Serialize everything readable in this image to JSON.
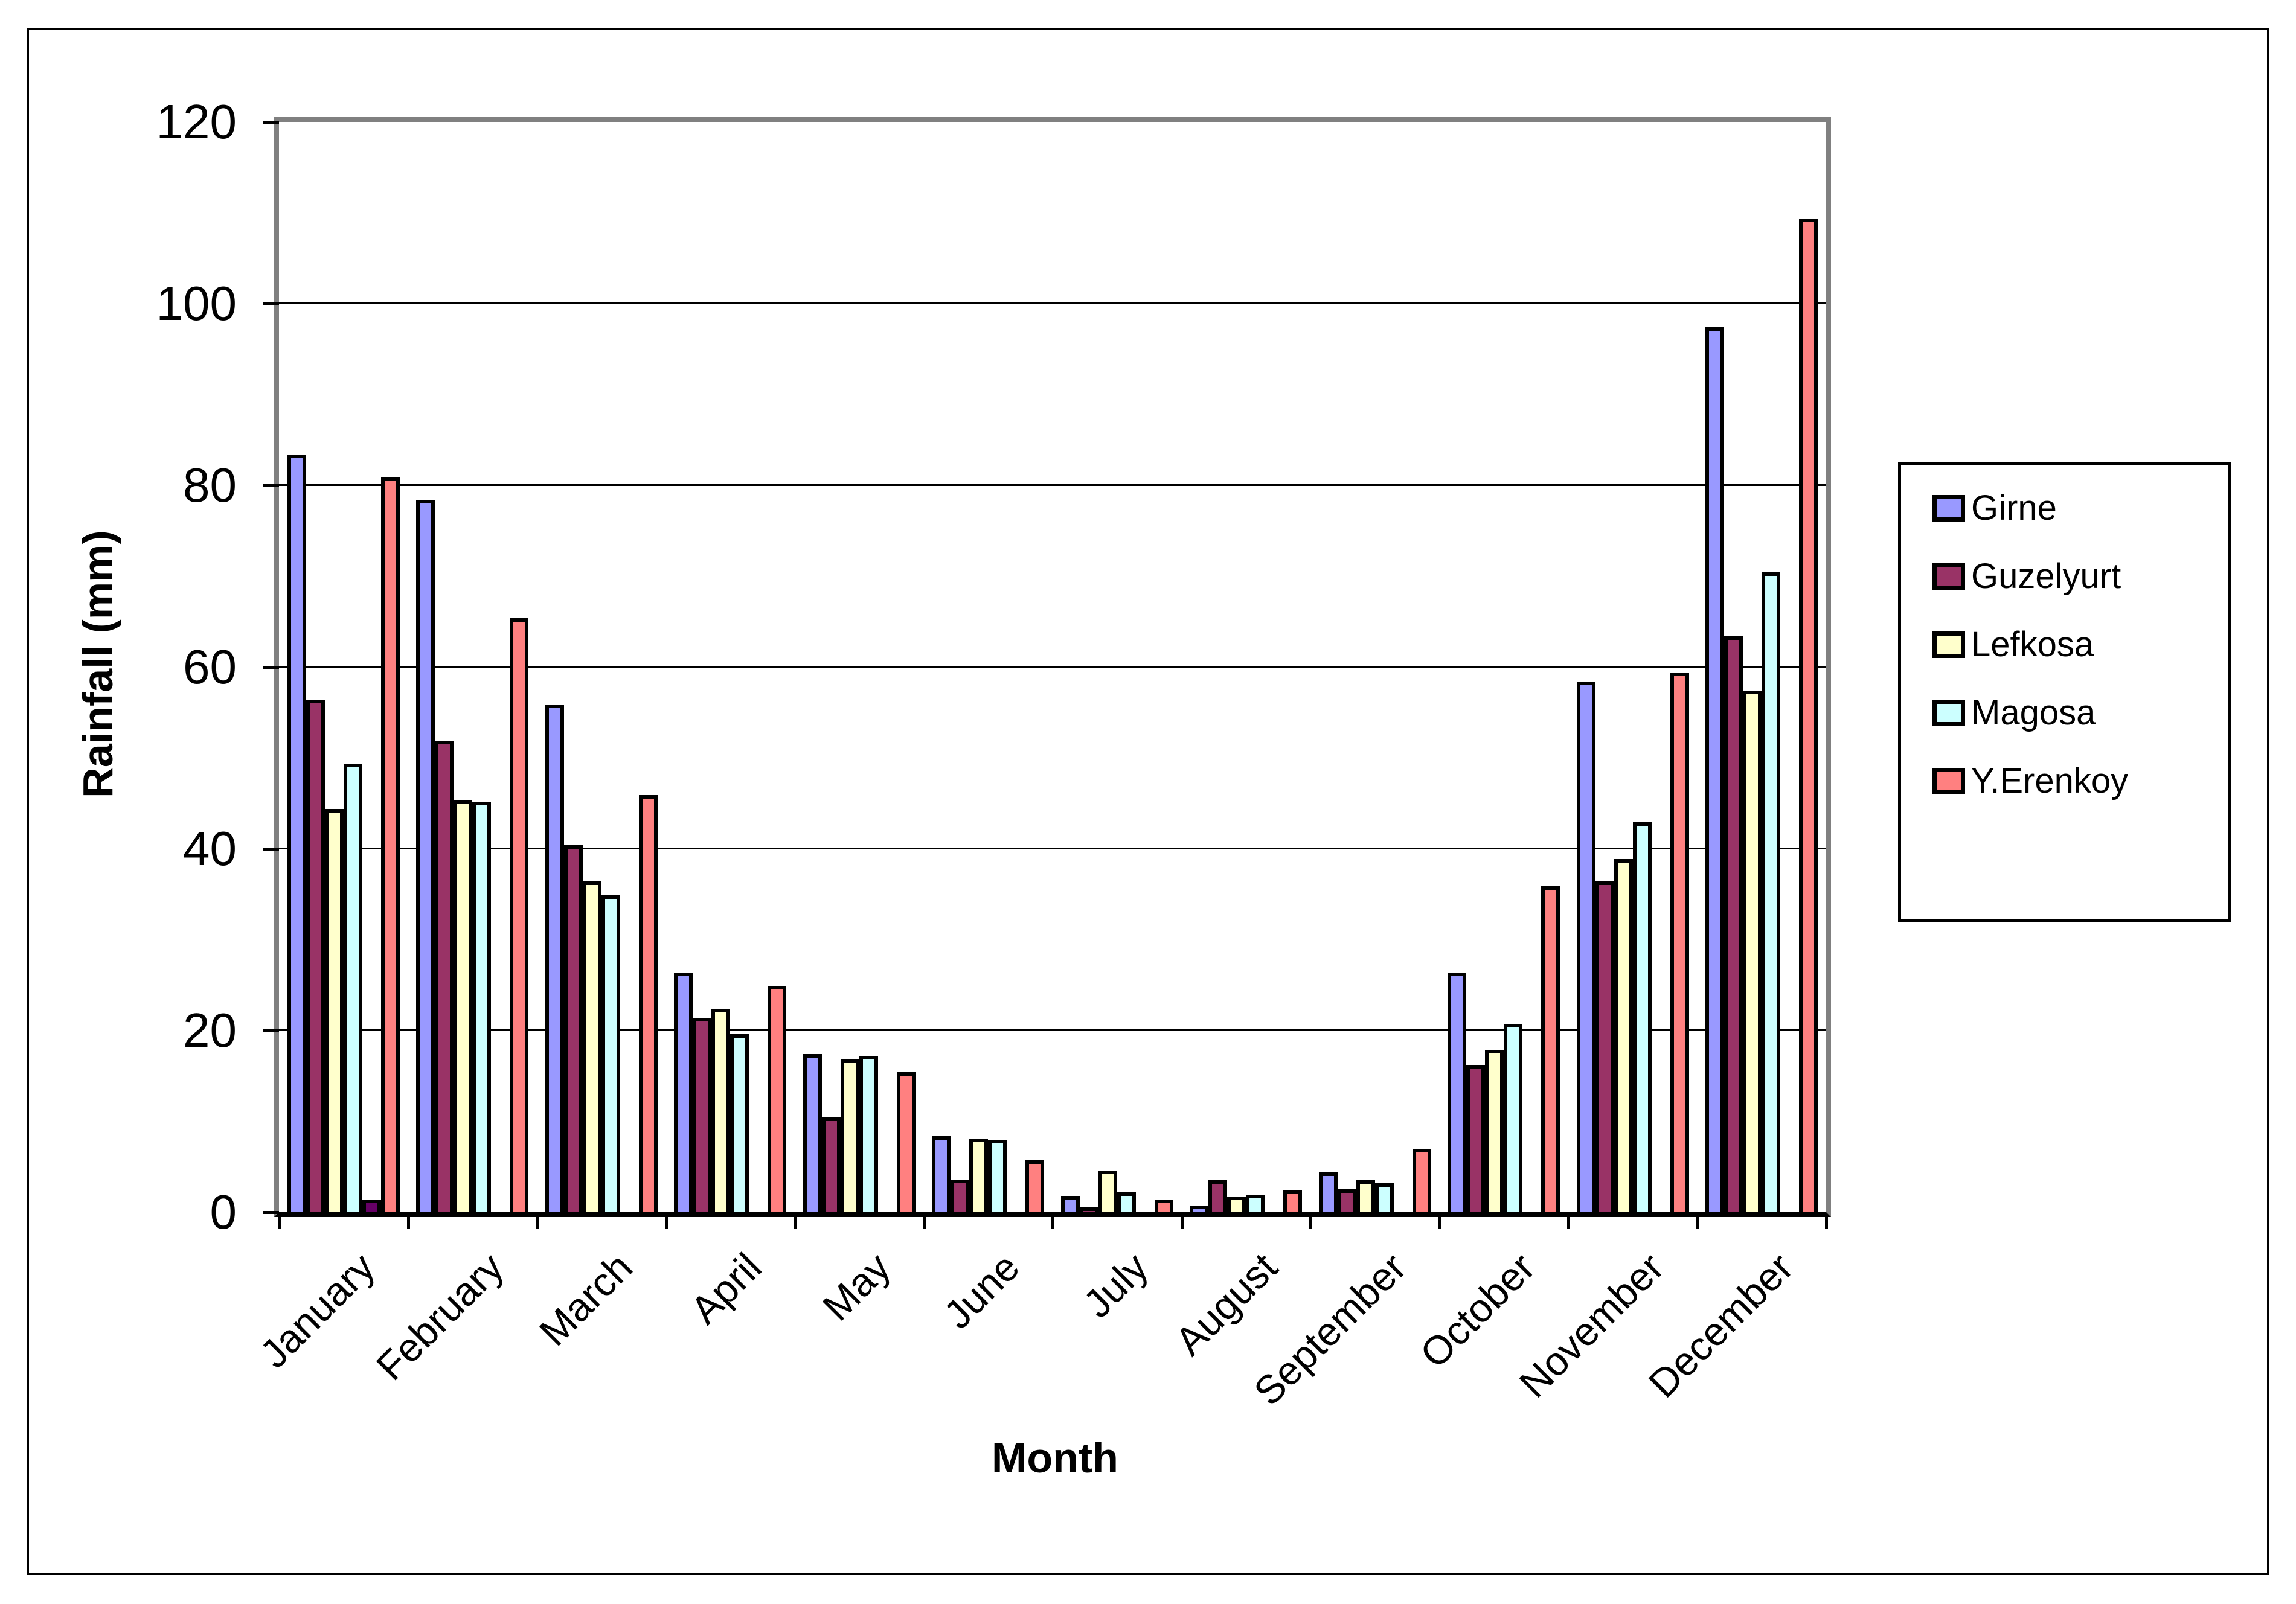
{
  "chart_data": {
    "type": "bar",
    "title": "",
    "xlabel": "Month",
    "ylabel": "Rainfall (mm)",
    "ylim": [
      0,
      120
    ],
    "ytick_step": 20,
    "y_tick_labels": [
      "0",
      "20",
      "40",
      "60",
      "80",
      "100",
      "120"
    ],
    "grid": true,
    "legend_position": "right",
    "categories": [
      "January",
      "February",
      "March",
      "April",
      "May",
      "June",
      "July",
      "August",
      "September",
      "October",
      "November",
      "December"
    ],
    "series": [
      {
        "name": "Girne",
        "color": "#9999FF",
        "in_legend": true,
        "values": [
          83,
          78,
          55.5,
          26,
          17,
          8,
          1.4,
          0.3,
          4,
          26,
          58,
          97
        ]
      },
      {
        "name": "Guzelyurt",
        "color": "#993366",
        "in_legend": true,
        "values": [
          56,
          51.5,
          40,
          21,
          10,
          3.2,
          0.1,
          3.1,
          2.1,
          15.8,
          36,
          63
        ]
      },
      {
        "name": "Lefkosa",
        "color": "#FFFFCC",
        "in_legend": true,
        "values": [
          44,
          45,
          36,
          22,
          16.4,
          7.7,
          4.2,
          1.3,
          3.1,
          17.5,
          38.5,
          57
        ]
      },
      {
        "name": "Magosa",
        "color": "#CCFFFF",
        "in_legend": true,
        "values": [
          49,
          44.8,
          34.5,
          19.2,
          16.8,
          7.6,
          1.8,
          1.5,
          2.8,
          20.3,
          42.5,
          70
        ]
      },
      {
        "name": "",
        "color": "#660066",
        "in_legend": false,
        "values": [
          1,
          0,
          0,
          0,
          0,
          0,
          0,
          0,
          0,
          0,
          0,
          0
        ]
      },
      {
        "name": "Y.Erenkoy",
        "color": "#FF8080",
        "in_legend": true,
        "values": [
          80.5,
          65,
          45.5,
          24.5,
          15,
          5.3,
          1.0,
          2.0,
          6.6,
          35.5,
          59,
          109
        ]
      }
    ]
  },
  "legend": {
    "items": [
      {
        "label": "Girne",
        "color": "#9999FF"
      },
      {
        "label": "Guzelyurt",
        "color": "#993366"
      },
      {
        "label": "Lefkosa",
        "color": "#FFFFCC"
      },
      {
        "label": "Magosa",
        "color": "#CCFFFF"
      },
      {
        "label": "Y.Erenkoy",
        "color": "#FF8080"
      }
    ]
  }
}
